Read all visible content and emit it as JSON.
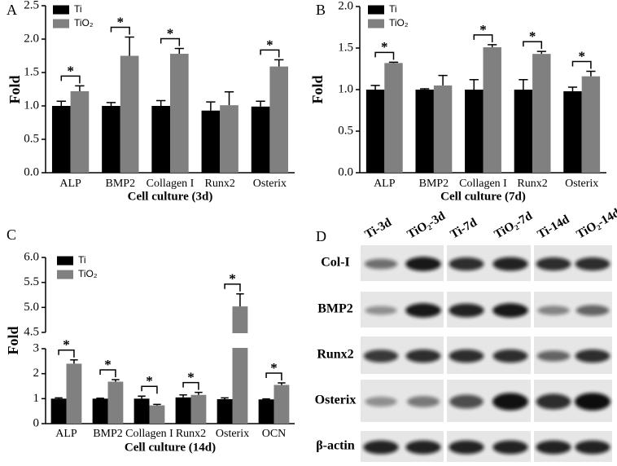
{
  "chart_data": [
    {
      "type": "bar",
      "panel_label": "A",
      "y_label": "Fold",
      "x_label": "Cell culture (3d)",
      "categories": [
        "ALP",
        "BMP2",
        "Collagen I",
        "Runx2",
        "Osterix"
      ],
      "series": [
        {
          "name": "Ti",
          "color": "#000000",
          "values": [
            1.0,
            1.0,
            1.0,
            0.93,
            0.99
          ],
          "errors": [
            0.07,
            0.05,
            0.08,
            0.13,
            0.08
          ]
        },
        {
          "name": "TiO₂",
          "color": "#808080",
          "values": [
            1.22,
            1.75,
            1.78,
            1.01,
            1.59
          ],
          "errors": [
            0.08,
            0.28,
            0.08,
            0.2,
            0.1
          ]
        }
      ],
      "significance": [
        "*",
        "*",
        "*",
        null,
        "*"
      ],
      "ylim": [
        0,
        2.5
      ],
      "yticks": [
        {
          "value": 0,
          "label": "0.0"
        },
        0.5,
        {
          "value": 1,
          "label": "1.0"
        },
        1.5,
        {
          "value": 2,
          "label": "2.0"
        },
        2.5
      ],
      "legend": "upper left"
    },
    {
      "type": "bar",
      "panel_label": "B",
      "y_label": "Fold",
      "x_label": "Cell culture (7d)",
      "categories": [
        "ALP",
        "BMP2",
        "Collagen I",
        "Runx2",
        "Osterix"
      ],
      "series": [
        {
          "name": "Ti",
          "color": "#000000",
          "values": [
            1.0,
            1.0,
            1.0,
            1.0,
            0.98
          ],
          "errors": [
            0.05,
            0.01,
            0.12,
            0.12,
            0.05
          ]
        },
        {
          "name": "TiO₂",
          "color": "#808080",
          "values": [
            1.32,
            1.05,
            1.51,
            1.43,
            1.16
          ],
          "errors": [
            0.01,
            0.12,
            0.03,
            0.03,
            0.06
          ]
        }
      ],
      "significance": [
        "*",
        null,
        "*",
        "*",
        "*"
      ],
      "ylim": [
        0,
        2
      ],
      "yticks": [
        {
          "value": 0,
          "label": "0.0"
        },
        0.5,
        {
          "value": 1,
          "label": "1.0"
        },
        1.5,
        {
          "value": 2,
          "label": "2.0"
        }
      ],
      "legend": "upper left"
    },
    {
      "type": "bar",
      "panel_label": "C",
      "y_label": "Fold",
      "x_label": "Cell culture (14d)",
      "categories": [
        "ALP",
        "BMP2",
        "Collagen I",
        "Runx2",
        "Osterix",
        "OCN"
      ],
      "series": [
        {
          "name": "Ti",
          "color": "#000000",
          "values": [
            1.0,
            1.0,
            1.0,
            1.05,
            0.98,
            0.97
          ],
          "errors": [
            0.03,
            0.02,
            0.1,
            0.1,
            0.05,
            0.02
          ]
        },
        {
          "name": "TiO₂",
          "color": "#808080",
          "values": [
            2.4,
            1.68,
            0.73,
            1.15,
            5.02,
            1.55
          ],
          "errors": [
            0.15,
            0.08,
            0.04,
            0.1,
            0.25,
            0.08
          ]
        }
      ],
      "significance": [
        "*",
        "*",
        "*",
        "*",
        "*",
        "*"
      ],
      "ylim": [
        0,
        6
      ],
      "ybreak": [
        3,
        4.5
      ],
      "yticks": [
        0,
        1,
        2,
        3,
        4.5,
        {
          "value": 5,
          "label": "5.0"
        },
        5.5,
        {
          "value": 6,
          "label": "6.0"
        }
      ],
      "legend": "upper left"
    }
  ],
  "blot": {
    "panel_label": "D",
    "lanes": [
      "Ti-3d",
      "TiO₂-3d",
      "Ti-7d",
      "TiO₂-7d",
      "Ti-14d",
      "TiO₂-14d"
    ],
    "rows": [
      "Col-I",
      "BMP2",
      "Runx2",
      "Osterix",
      "β-actin"
    ]
  }
}
